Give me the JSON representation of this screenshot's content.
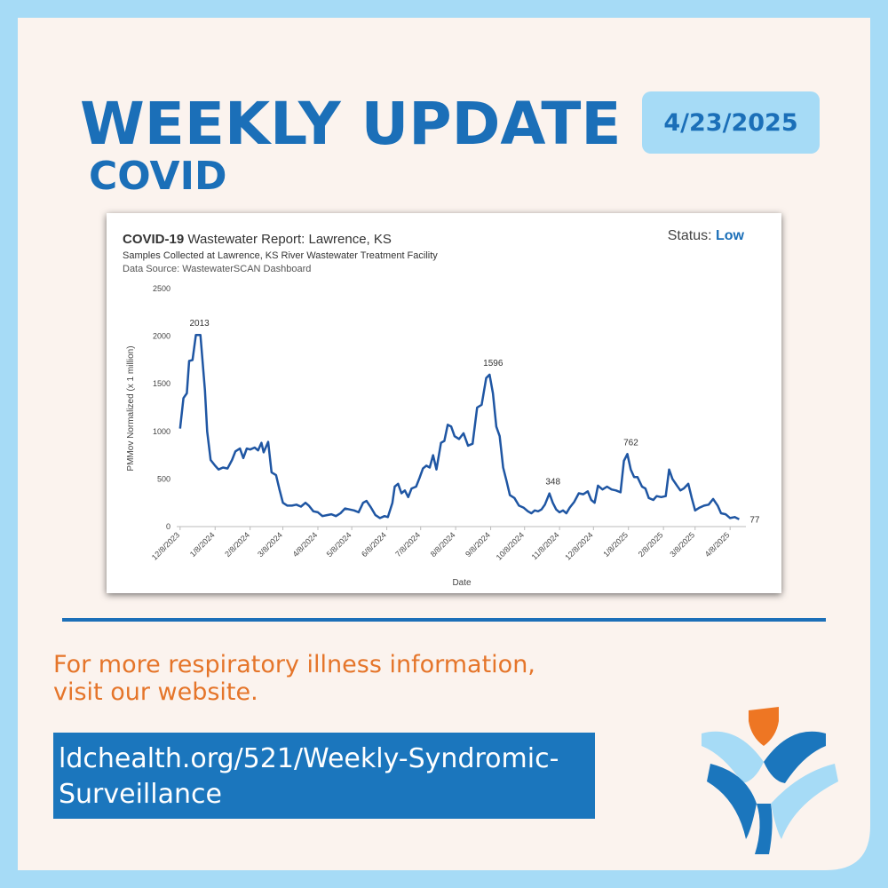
{
  "header": {
    "title": "WEEKLY UPDATE",
    "subtitle": "COVID",
    "date": "4/23/2025"
  },
  "chart_data": {
    "type": "line",
    "title_lead": "COVID-19",
    "title": "Wastewater Report: Lawrence, KS",
    "subtitle": "Samples Collected at Lawrence, KS River Wastewater Treatment Facility",
    "source": "Data Source: WastewaterSCAN Dashboard",
    "status_label": "Status:",
    "status": "Low",
    "x_label": "Date",
    "y_label": "PMMov Normalized (x 1 million)",
    "xlim": [
      "12/5/2023",
      "4/22/2025"
    ],
    "xticks": [
      "12/8/2023",
      "1/8/2024",
      "2/8/2024",
      "3/8/2024",
      "4/8/2024",
      "5/8/2024",
      "6/8/2024",
      "7/8/2024",
      "8/8/2024",
      "9/8/2024",
      "10/8/2024",
      "11/8/2024",
      "12/8/2024",
      "1/8/2025",
      "2/8/2025",
      "3/8/2025",
      "4/8/2025"
    ],
    "ylim": [
      0,
      2500
    ],
    "yticks": [
      0,
      500,
      1000,
      1500,
      2000,
      2500
    ],
    "grid": false,
    "x": [
      "12/8/2023",
      "12/11/2023",
      "12/14/2023",
      "12/16/2023",
      "12/19/2023",
      "12/22/2023",
      "12/26/2023",
      "12/30/2023",
      "1/1/2024",
      "1/4/2024",
      "1/8/2024",
      "1/11/2024",
      "1/15/2024",
      "1/19/2024",
      "1/23/2024",
      "1/26/2024",
      "1/30/2024",
      "2/2/2024",
      "2/5/2024",
      "2/8/2024",
      "2/12/2024",
      "2/15/2024",
      "2/18/2024",
      "2/20/2024",
      "2/24/2024",
      "2/27/2024",
      "3/2/2024",
      "3/5/2024",
      "3/8/2024",
      "3/12/2024",
      "3/16/2024",
      "3/20/2024",
      "3/24/2024",
      "3/28/2024",
      "3/31/2024",
      "4/4/2024",
      "4/8/2024",
      "4/12/2024",
      "4/16/2024",
      "4/20/2024",
      "4/24/2024",
      "4/28/2024",
      "5/2/2024",
      "5/6/2024",
      "5/10/2024",
      "5/14/2024",
      "5/18/2024",
      "5/21/2024",
      "5/25/2024",
      "5/29/2024",
      "6/2/2024",
      "6/6/2024",
      "6/9/2024",
      "6/13/2024",
      "6/15/2024",
      "6/18/2024",
      "6/21/2024",
      "6/24/2024",
      "6/27/2024",
      "6/30/2024",
      "7/4/2024",
      "7/7/2024",
      "7/10/2024",
      "7/13/2024",
      "7/16/2024",
      "7/19/2024",
      "7/22/2024",
      "7/26/2024",
      "7/29/2024",
      "8/1/2024",
      "8/4/2024",
      "8/7/2024",
      "8/11/2024",
      "8/15/2024",
      "8/19/2024",
      "8/23/2024",
      "8/27/2024",
      "8/31/2024",
      "9/4/2024",
      "9/7/2024",
      "9/10/2024",
      "9/13/2024",
      "9/16/2024",
      "9/19/2024",
      "9/22/2024",
      "9/25/2024",
      "9/29/2024",
      "10/3/2024",
      "10/7/2024",
      "10/11/2024",
      "10/14/2024",
      "10/17/2024",
      "10/20/2024",
      "10/23/2024",
      "10/26/2024",
      "10/30/2024",
      "11/2/2024",
      "11/5/2024",
      "11/8/2024",
      "11/11/2024",
      "11/14/2024",
      "11/17/2024",
      "11/21/2024",
      "11/25/2024",
      "11/29/2024",
      "12/3/2024",
      "12/6/2024",
      "12/9/2024",
      "12/12/2024",
      "12/16/2024",
      "12/20/2024",
      "12/24/2024",
      "12/28/2024",
      "1/1/2025",
      "1/4/2025",
      "1/7/2025",
      "1/10/2025",
      "1/13/2025",
      "1/16/2025",
      "1/20/2025",
      "1/23/2025",
      "1/26/2025",
      "1/30/2025",
      "2/2/2025",
      "2/6/2025",
      "2/10/2025",
      "2/13/2025",
      "2/16/2025",
      "2/20/2025",
      "2/23/2025",
      "2/26/2025",
      "3/2/2025",
      "3/5/2025",
      "3/8/2025",
      "3/12/2025",
      "3/16/2025",
      "3/20/2025",
      "3/24/2025",
      "3/28/2025",
      "3/31/2025",
      "4/4/2025",
      "4/8/2025",
      "4/12/2025",
      "4/16/2025"
    ],
    "series": [
      {
        "color": "#1f56a3",
        "values": [
          1030,
          1350,
          1400,
          1740,
          1750,
          2013,
          2013,
          1430,
          1000,
          700,
          640,
          600,
          620,
          610,
          700,
          790,
          820,
          720,
          820,
          810,
          830,
          800,
          880,
          780,
          890,
          570,
          540,
          390,
          250,
          220,
          220,
          230,
          210,
          250,
          220,
          160,
          150,
          110,
          120,
          130,
          110,
          140,
          190,
          180,
          170,
          150,
          250,
          270,
          200,
          120,
          90,
          110,
          100,
          250,
          420,
          450,
          350,
          380,
          310,
          400,
          420,
          510,
          610,
          640,
          620,
          750,
          600,
          880,
          900,
          1070,
          1050,
          950,
          920,
          980,
          850,
          870,
          1250,
          1280,
          1560,
          1596,
          1400,
          1050,
          950,
          620,
          480,
          330,
          300,
          220,
          200,
          160,
          140,
          170,
          160,
          180,
          230,
          348,
          250,
          180,
          150,
          170,
          140,
          200,
          260,
          350,
          340,
          370,
          280,
          250,
          430,
          390,
          420,
          390,
          380,
          360,
          690,
          762,
          600,
          520,
          520,
          420,
          400,
          300,
          280,
          320,
          310,
          320,
          600,
          500,
          430,
          380,
          400,
          450,
          300,
          170,
          200,
          220,
          230,
          290,
          220,
          140,
          130,
          90,
          100,
          77
        ]
      }
    ],
    "data_labels_at": [
      5,
      79,
      95,
      115,
      143
    ]
  },
  "footer": {
    "message_lines": [
      "For more respiratory illness information,",
      "visit our website."
    ],
    "link_lines": [
      "ldchealth.org/521/Weekly-Syndromic-",
      "Surveillance"
    ]
  }
}
